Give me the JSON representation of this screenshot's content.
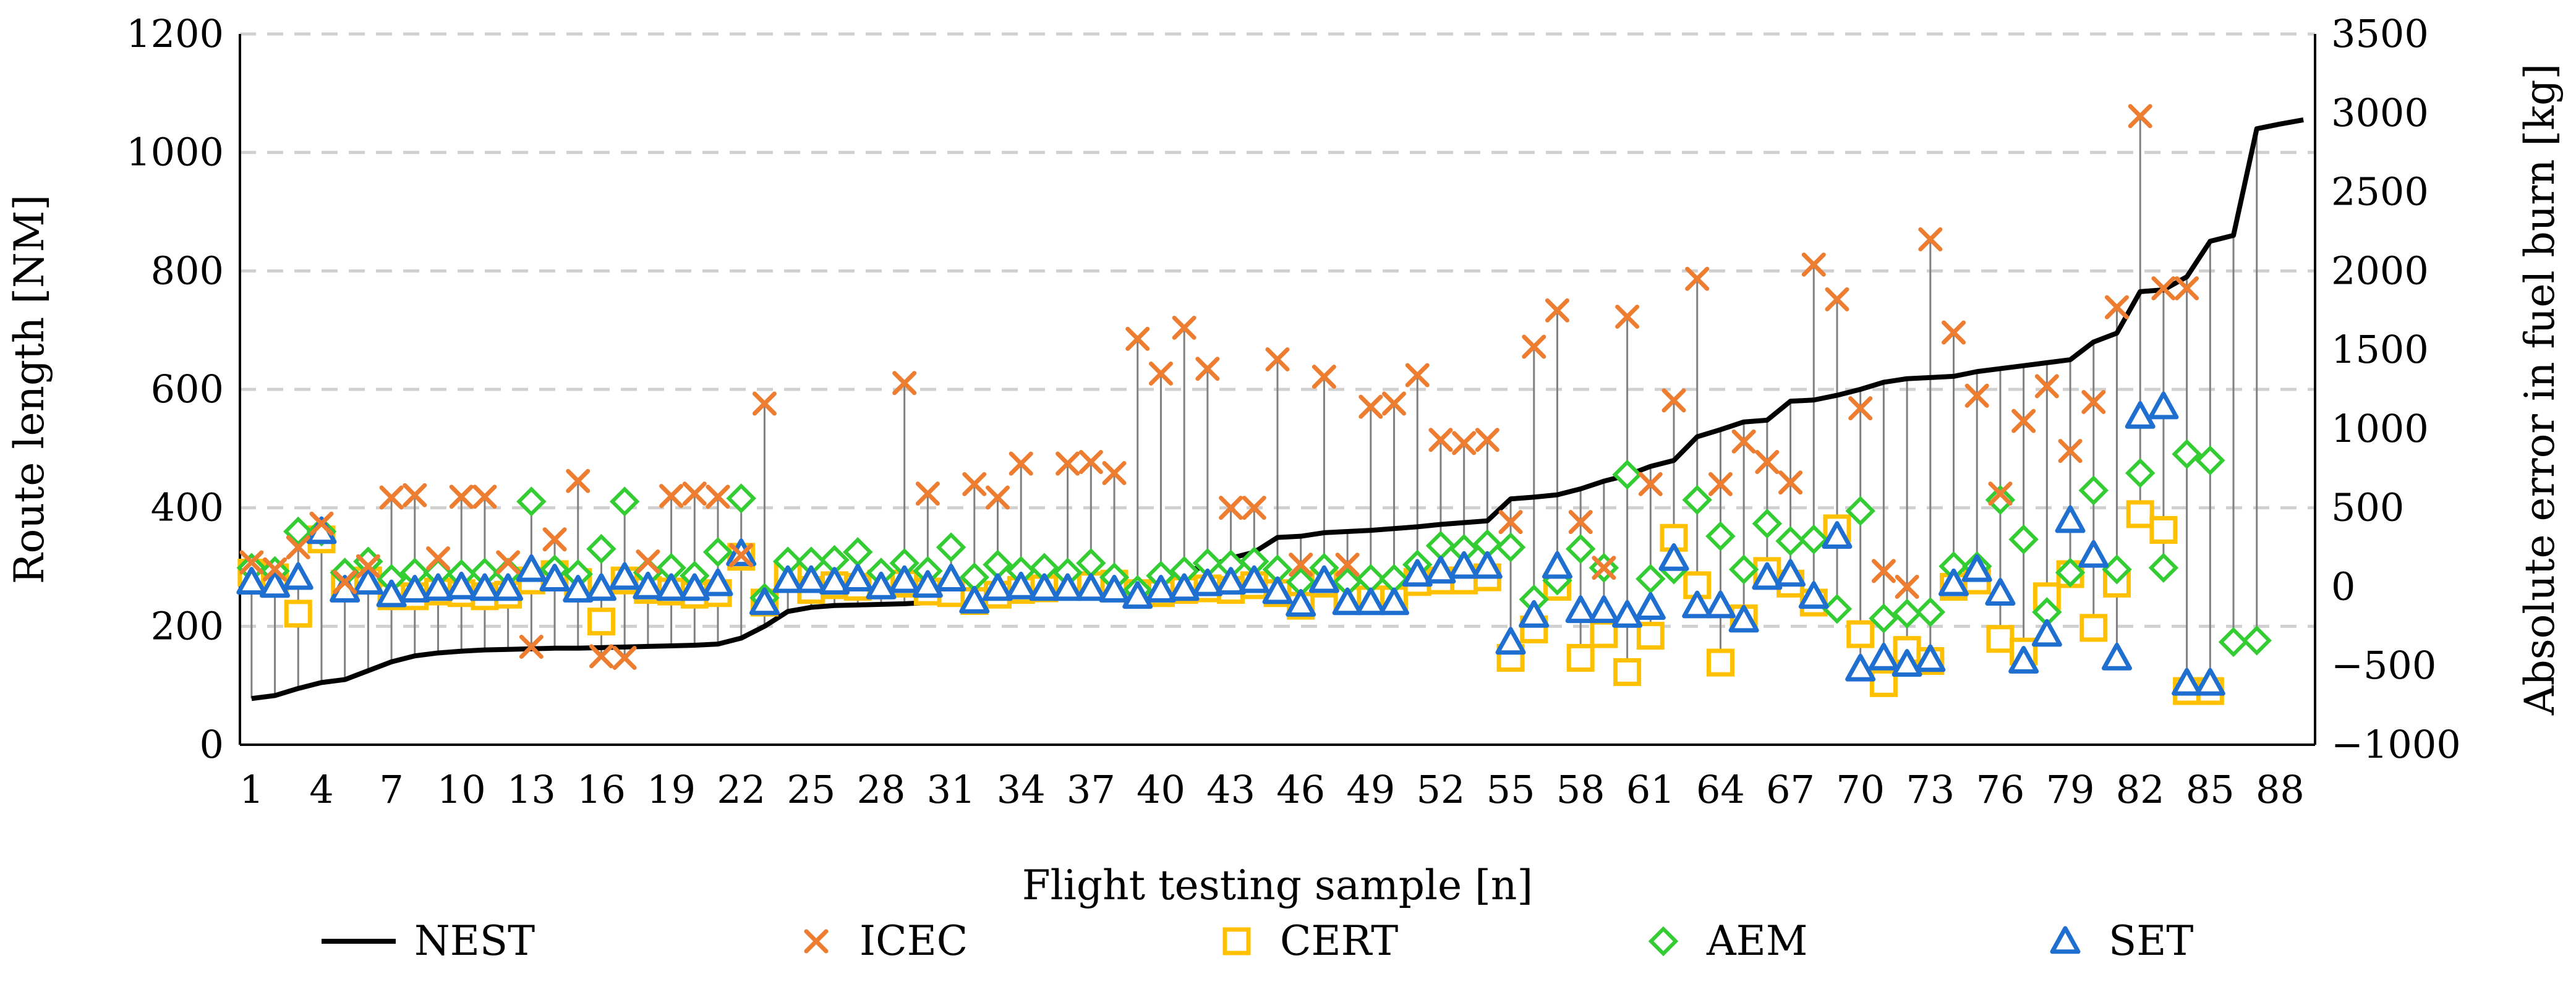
{
  "chart_data": {
    "type": "line+scatter",
    "xlabel": "Flight testing sample [n]",
    "ylabel_left": "Route length [NM]",
    "ylabel_right": "Absolute error in fuel burn [kg]",
    "ylim_left": [
      0,
      1200
    ],
    "ylim_right": [
      -1000,
      3500
    ],
    "yticks_left": [
      0,
      200,
      400,
      600,
      800,
      1000,
      1200
    ],
    "yticks_right": [
      -1000,
      -500,
      0,
      500,
      1000,
      1500,
      2000,
      2500,
      3000,
      3500
    ],
    "xticks": [
      1,
      4,
      7,
      10,
      13,
      16,
      19,
      22,
      25,
      28,
      31,
      34,
      37,
      40,
      43,
      46,
      49,
      52,
      55,
      58,
      61,
      64,
      67,
      70,
      73,
      76,
      79,
      82,
      85,
      88
    ],
    "x_count": 89,
    "grid": "horizontal dashed",
    "legend_position": "bottom",
    "legend": [
      "NEST",
      "ICEC",
      "CERT",
      "AEM",
      "SET"
    ],
    "colors": {
      "NEST": "#000000",
      "ICEC": "#ED7D31",
      "CERT": "#FFC000",
      "AEM": "#33CC33",
      "SET": "#1F6FD1",
      "grid": "#d0d0d0",
      "stem": "#808080"
    },
    "nest_route_length": [
      78,
      83,
      95,
      105,
      110,
      125,
      140,
      150,
      155,
      158,
      160,
      161,
      162,
      163,
      163,
      164,
      165,
      166,
      167,
      168,
      170,
      180,
      200,
      225,
      232,
      235,
      236,
      237,
      238,
      240,
      240,
      242,
      243,
      245,
      246,
      248,
      250,
      250,
      265,
      280,
      295,
      300,
      315,
      325,
      350,
      352,
      358,
      360,
      362,
      365,
      368,
      372,
      375,
      378,
      415,
      418,
      422,
      432,
      445,
      455,
      470,
      480,
      520,
      532,
      545,
      548,
      580,
      582,
      590,
      600,
      612,
      618,
      620,
      622,
      630,
      635,
      640,
      645,
      650,
      680,
      695,
      765,
      768,
      790,
      850,
      860,
      1040,
      1048,
      1055
    ],
    "series": [
      {
        "name": "ICEC",
        "axis": "right",
        "values": [
          155,
          110,
          250,
          400,
          30,
          130,
          565,
          580,
          180,
          570,
          570,
          155,
          -380,
          300,
          670,
          -440,
          -450,
          160,
          575,
          590,
          570,
          200,
          1160,
          null,
          null,
          null,
          null,
          null,
          1290,
          590,
          null,
          650,
          565,
          780,
          null,
          780,
          790,
          720,
          1570,
          1350,
          1640,
          1380,
          500,
          500,
          1440,
          140,
          1330,
          140,
          1140,
          1160,
          1340,
          930,
          910,
          930,
          410,
          1520,
          1750,
          410,
          120,
          1710,
          650,
          1180,
          1950,
          650,
          920,
          790,
          660,
          2040,
          1820,
          1130,
          100,
          0,
          2200,
          1610,
          1210,
          590,
          1050,
          1270,
          860,
          1170,
          1770,
          2980,
          1890,
          1890,
          null,
          null,
          null,
          null,
          null
        ]
      },
      {
        "name": "CERT",
        "axis": "right",
        "values": [
          90,
          60,
          -170,
          300,
          20,
          40,
          -60,
          -60,
          -30,
          -40,
          -60,
          -50,
          40,
          80,
          30,
          -220,
          40,
          -20,
          -30,
          -50,
          -40,
          190,
          -100,
          70,
          -20,
          10,
          0,
          20,
          20,
          -30,
          -40,
          -90,
          -50,
          -20,
          -10,
          10,
          10,
          20,
          -40,
          -40,
          -20,
          -10,
          -20,
          10,
          -40,
          -120,
          20,
          -80,
          -80,
          -80,
          30,
          40,
          40,
          60,
          -450,
          -270,
          0,
          -450,
          -300,
          -540,
          -310,
          310,
          10,
          -480,
          -200,
          100,
          20,
          -100,
          370,
          -300,
          -610,
          -400,
          -470,
          0,
          40,
          -330,
          -410,
          -60,
          80,
          -260,
          20,
          460,
          360,
          -660,
          -660,
          null,
          null,
          null,
          null
        ]
      },
      {
        "name": "AEM",
        "axis": "right",
        "values": [
          120,
          100,
          350,
          350,
          90,
          160,
          50,
          90,
          90,
          80,
          90,
          90,
          540,
          110,
          80,
          240,
          540,
          90,
          120,
          70,
          220,
          560,
          -70,
          160,
          160,
          170,
          220,
          90,
          150,
          100,
          250,
          60,
          140,
          100,
          120,
          90,
          150,
          60,
          -20,
          70,
          100,
          150,
          140,
          160,
          110,
          30,
          120,
          30,
          50,
          50,
          140,
          260,
          240,
          270,
          250,
          -80,
          40,
          240,
          120,
          710,
          50,
          110,
          550,
          320,
          110,
          400,
          290,
          300,
          -140,
          480,
          -200,
          -170,
          -160,
          130,
          130,
          550,
          300,
          -160,
          90,
          610,
          110,
          720,
          120,
          840,
          800,
          -350,
          -340,
          null,
          null
        ]
      },
      {
        "name": "SET",
        "axis": "right",
        "values": [
          30,
          10,
          60,
          350,
          -20,
          30,
          -50,
          -20,
          -10,
          0,
          -10,
          -10,
          110,
          50,
          -20,
          -10,
          60,
          0,
          -10,
          -10,
          20,
          210,
          -100,
          40,
          40,
          30,
          50,
          0,
          40,
          10,
          50,
          -90,
          -10,
          0,
          -10,
          -10,
          -10,
          -20,
          -60,
          -20,
          -10,
          20,
          30,
          40,
          -30,
          -110,
          40,
          -100,
          -100,
          -100,
          80,
          100,
          130,
          130,
          -350,
          -180,
          130,
          -150,
          -150,
          -180,
          -130,
          180,
          -120,
          -120,
          -210,
          60,
          80,
          -60,
          320,
          -520,
          -450,
          -490,
          -460,
          20,
          110,
          -40,
          -470,
          -300,
          420,
          200,
          -450,
          1080,
          1140,
          -610,
          -610,
          null,
          null,
          null,
          null
        ]
      }
    ]
  }
}
